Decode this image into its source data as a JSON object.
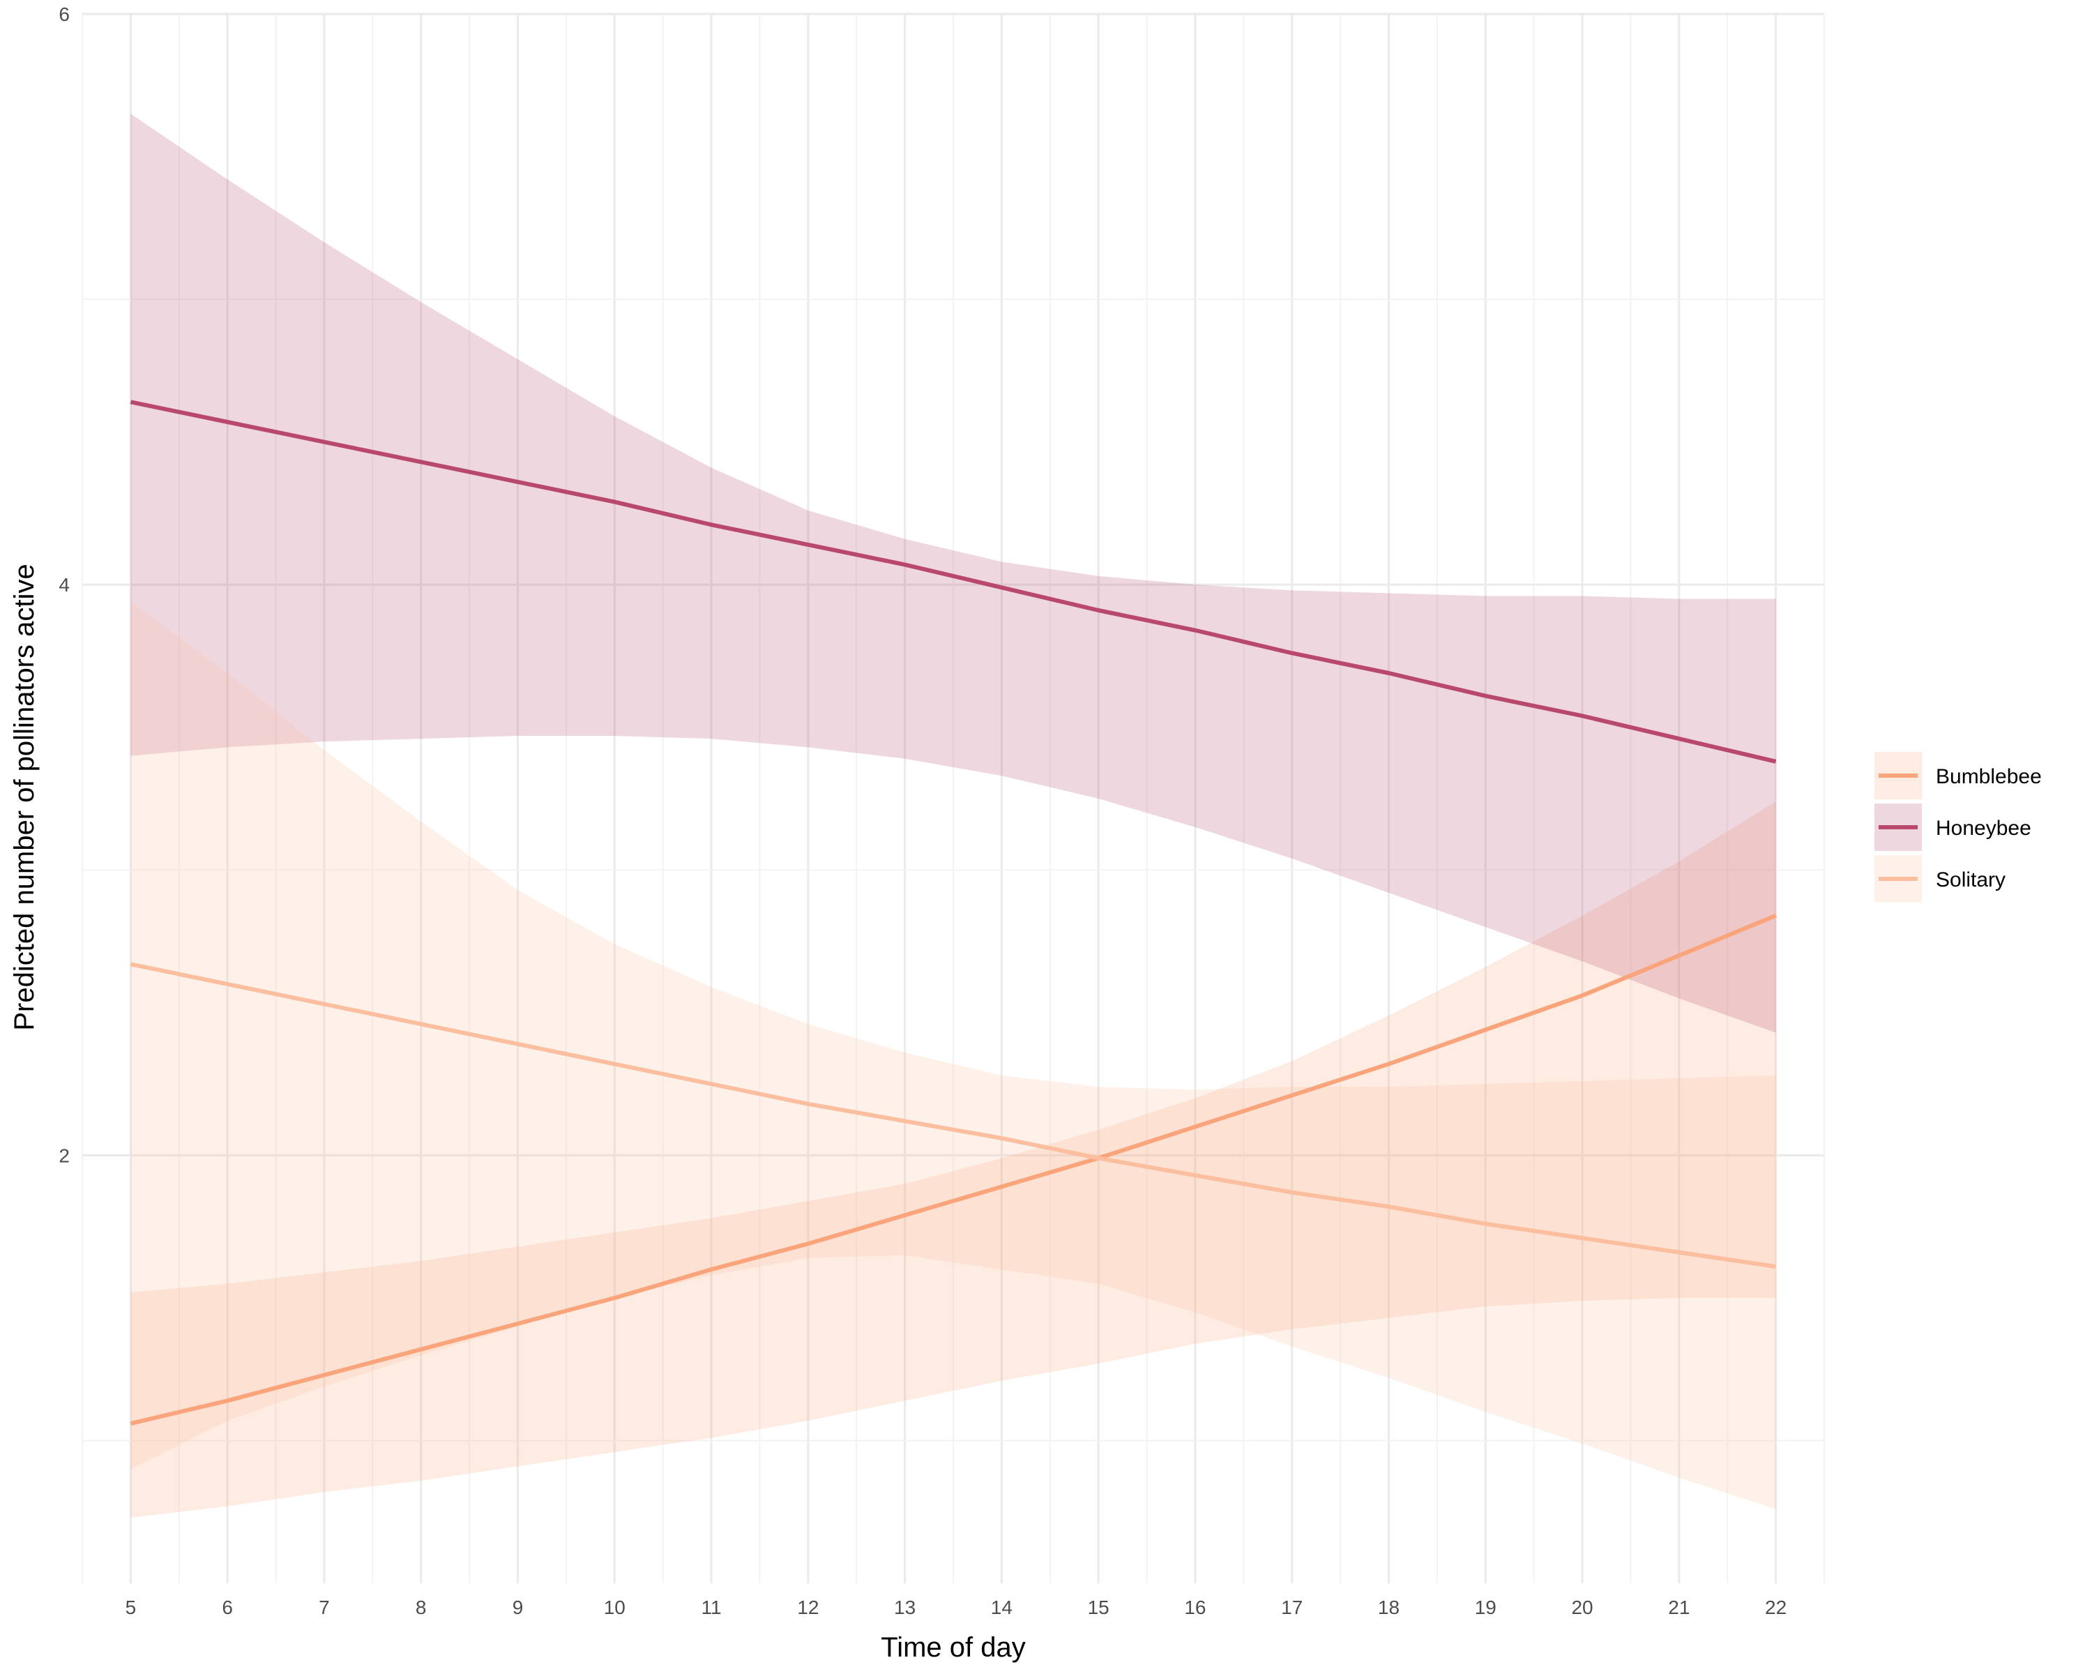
{
  "chart_data": {
    "type": "line",
    "title": "",
    "xlabel": "Time of day",
    "ylabel": "Predicted number of pollinators active",
    "xlim": [
      4.5,
      22.5
    ],
    "ylim": [
      0.5,
      6.0
    ],
    "x_ticks": [
      5,
      6,
      7,
      8,
      9,
      10,
      11,
      12,
      13,
      14,
      15,
      16,
      17,
      18,
      19,
      20,
      21,
      22
    ],
    "y_ticks": [
      2,
      4,
      6
    ],
    "y_minor_gridlines": [
      1,
      3,
      5
    ],
    "grid": true,
    "legend_position": "right",
    "x": [
      5,
      6,
      7,
      8,
      9,
      10,
      11,
      12,
      13,
      14,
      15,
      16,
      17,
      18,
      19,
      20,
      21,
      22
    ],
    "series": [
      {
        "name": "Bumblebee",
        "color": "#f9a47a",
        "values": [
          1.06,
          1.14,
          1.23,
          1.32,
          1.41,
          1.5,
          1.6,
          1.69,
          1.79,
          1.89,
          1.99,
          2.1,
          2.21,
          2.32,
          2.44,
          2.56,
          2.7,
          2.84
        ],
        "lower": [
          0.73,
          0.77,
          0.82,
          0.86,
          0.91,
          0.96,
          1.01,
          1.07,
          1.14,
          1.21,
          1.27,
          1.34,
          1.39,
          1.43,
          1.47,
          1.49,
          1.5,
          1.5
        ],
        "upper": [
          1.52,
          1.55,
          1.59,
          1.63,
          1.68,
          1.73,
          1.78,
          1.84,
          1.9,
          1.99,
          2.09,
          2.2,
          2.33,
          2.49,
          2.66,
          2.84,
          3.03,
          3.24
        ]
      },
      {
        "name": "Honeybee",
        "color": "#b8496d",
        "values": [
          4.64,
          4.57,
          4.5,
          4.43,
          4.36,
          4.29,
          4.21,
          4.14,
          4.07,
          3.99,
          3.91,
          3.84,
          3.76,
          3.69,
          3.61,
          3.54,
          3.46,
          3.38
        ],
        "lower": [
          3.4,
          3.43,
          3.45,
          3.46,
          3.47,
          3.47,
          3.46,
          3.43,
          3.39,
          3.33,
          3.25,
          3.15,
          3.04,
          2.92,
          2.8,
          2.68,
          2.55,
          2.43
        ],
        "upper": [
          5.65,
          5.42,
          5.2,
          4.99,
          4.79,
          4.59,
          4.41,
          4.26,
          4.16,
          4.08,
          4.03,
          4.0,
          3.98,
          3.97,
          3.96,
          3.96,
          3.95,
          3.95
        ]
      },
      {
        "name": "Solitary",
        "color": "#fbbfa0",
        "values": [
          2.67,
          2.6,
          2.53,
          2.46,
          2.39,
          2.32,
          2.25,
          2.18,
          2.12,
          2.06,
          1.99,
          1.93,
          1.87,
          1.82,
          1.76,
          1.71,
          1.66,
          1.61
        ],
        "lower": [
          0.9,
          1.07,
          1.19,
          1.3,
          1.4,
          1.5,
          1.58,
          1.64,
          1.65,
          1.6,
          1.55,
          1.45,
          1.33,
          1.22,
          1.1,
          0.99,
          0.87,
          0.76
        ],
        "upper": [
          3.94,
          3.69,
          3.42,
          3.17,
          2.93,
          2.74,
          2.59,
          2.46,
          2.36,
          2.28,
          2.24,
          2.23,
          2.24,
          2.24,
          2.25,
          2.26,
          2.27,
          2.28
        ]
      }
    ]
  }
}
